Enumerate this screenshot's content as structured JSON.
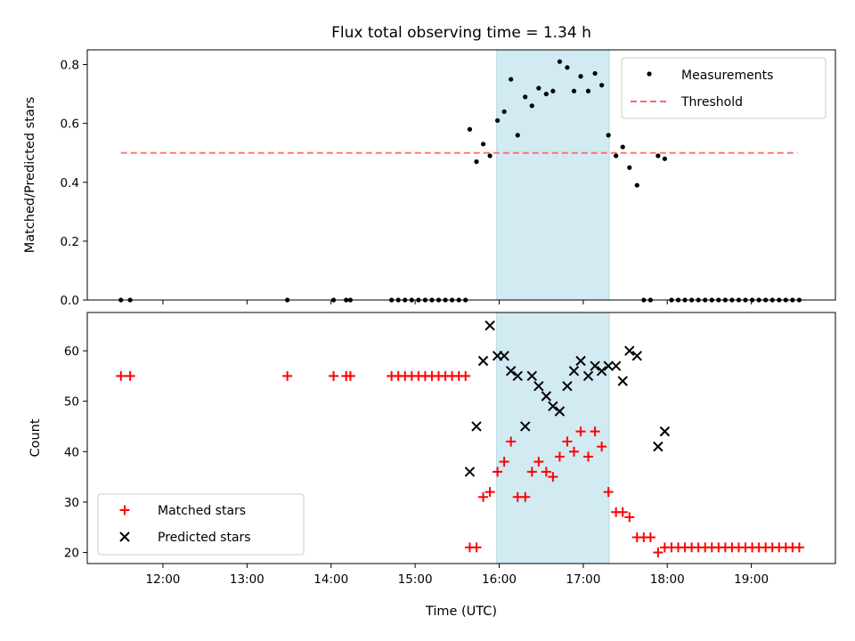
{
  "chart_data": [
    {
      "type": "scatter",
      "title": "Flux total observing time = 1.34 h",
      "ylabel": "Matched/Predicted stars",
      "xlabel": "",
      "xlim": [
        11.1,
        20.0
      ],
      "ylim": [
        0.0,
        0.85
      ],
      "yticks": [
        0.0,
        0.2,
        0.4,
        0.6,
        0.8
      ],
      "ytick_labels": [
        "0.0",
        "0.2",
        "0.4",
        "0.6",
        "0.8"
      ],
      "shaded_span": {
        "x_start": 15.97,
        "x_end": 17.31,
        "color": "#add8e6"
      },
      "threshold": {
        "name": "Threshold",
        "y": 0.5,
        "x_start": 11.5,
        "x_end": 19.55,
        "color": "#ff6666",
        "style": "dashed"
      },
      "series": [
        {
          "name": "Measurements",
          "color": "#000000",
          "marker": "dot",
          "x": [
            11.5,
            11.61,
            13.48,
            14.03,
            14.18,
            14.23,
            14.72,
            14.8,
            14.88,
            14.96,
            15.04,
            15.12,
            15.2,
            15.28,
            15.36,
            15.44,
            15.52,
            15.6,
            15.65,
            15.73,
            15.81,
            15.89,
            15.98,
            16.06,
            16.14,
            16.22,
            16.31,
            16.39,
            16.47,
            16.56,
            16.64,
            16.72,
            16.81,
            16.89,
            16.97,
            17.06,
            17.14,
            17.22,
            17.3,
            17.39,
            17.47,
            17.55,
            17.64,
            17.72,
            17.8,
            17.89,
            17.97,
            18.05,
            18.13,
            18.21,
            18.29,
            18.37,
            18.45,
            18.53,
            18.61,
            18.69,
            18.77,
            18.85,
            18.93,
            19.01,
            19.09,
            19.17,
            19.25,
            19.33,
            19.41,
            19.49,
            19.57
          ],
          "y": [
            0.0,
            0.0,
            0.0,
            0.0,
            0.0,
            0.0,
            0.0,
            0.0,
            0.0,
            0.0,
            0.0,
            0.0,
            0.0,
            0.0,
            0.0,
            0.0,
            0.0,
            0.0,
            0.58,
            0.47,
            0.53,
            0.49,
            0.61,
            0.64,
            0.75,
            0.56,
            0.69,
            0.66,
            0.72,
            0.7,
            0.71,
            0.81,
            0.79,
            0.71,
            0.76,
            0.71,
            0.77,
            0.73,
            0.56,
            0.49,
            0.52,
            0.45,
            0.39,
            0.0,
            0.0,
            0.49,
            0.48,
            0.0,
            0.0,
            0.0,
            0.0,
            0.0,
            0.0,
            0.0,
            0.0,
            0.0,
            0.0,
            0.0,
            0.0,
            0.0,
            0.0,
            0.0,
            0.0,
            0.0,
            0.0,
            0.0,
            0.0
          ]
        }
      ],
      "legend": {
        "placement": "top-right",
        "entries": [
          "Measurements",
          "Threshold"
        ]
      }
    },
    {
      "type": "scatter",
      "title": "",
      "ylabel": "Count",
      "xlabel": "Time (UTC)",
      "xlim": [
        11.1,
        20.0
      ],
      "ylim": [
        17.8,
        67.6
      ],
      "xticks": [
        12,
        13,
        14,
        15,
        16,
        17,
        18,
        19
      ],
      "xtick_labels": [
        "12:00",
        "13:00",
        "14:00",
        "15:00",
        "16:00",
        "17:00",
        "18:00",
        "19:00"
      ],
      "yticks": [
        20,
        30,
        40,
        50,
        60
      ],
      "ytick_labels": [
        "20",
        "30",
        "40",
        "50",
        "60"
      ],
      "shaded_span": {
        "x_start": 15.97,
        "x_end": 17.31,
        "color": "#add8e6"
      },
      "series": [
        {
          "name": "Matched stars",
          "color": "#ff0000",
          "marker": "plus",
          "x": [
            11.5,
            11.61,
            13.48,
            14.03,
            14.18,
            14.23,
            14.72,
            14.8,
            14.88,
            14.96,
            15.04,
            15.12,
            15.2,
            15.28,
            15.36,
            15.44,
            15.52,
            15.6,
            15.65,
            15.73,
            15.81,
            15.89,
            15.98,
            16.06,
            16.14,
            16.22,
            16.31,
            16.39,
            16.47,
            16.56,
            16.64,
            16.72,
            16.81,
            16.89,
            16.97,
            17.06,
            17.14,
            17.22,
            17.3,
            17.39,
            17.47,
            17.55,
            17.64,
            17.72,
            17.8,
            17.89,
            17.97,
            18.05,
            18.13,
            18.21,
            18.29,
            18.37,
            18.45,
            18.53,
            18.61,
            18.69,
            18.77,
            18.85,
            18.93,
            19.01,
            19.09,
            19.17,
            19.25,
            19.33,
            19.41,
            19.49,
            19.57
          ],
          "y": [
            55,
            55,
            55,
            55,
            55,
            55,
            55,
            55,
            55,
            55,
            55,
            55,
            55,
            55,
            55,
            55,
            55,
            55,
            21,
            21,
            31,
            32,
            36,
            38,
            42,
            31,
            31,
            36,
            38,
            36,
            35,
            39,
            42,
            40,
            44,
            39,
            44,
            41,
            32,
            28,
            28,
            27,
            23,
            23,
            23,
            20,
            21,
            21,
            21,
            21,
            21,
            21,
            21,
            21,
            21,
            21,
            21,
            21,
            21,
            21,
            21,
            21,
            21,
            21,
            21,
            21,
            21
          ]
        },
        {
          "name": "Predicted stars",
          "color": "#000000",
          "marker": "x",
          "x": [
            15.65,
            15.73,
            15.81,
            15.89,
            15.98,
            16.06,
            16.14,
            16.22,
            16.31,
            16.39,
            16.47,
            16.56,
            16.64,
            16.72,
            16.81,
            16.89,
            16.97,
            17.06,
            17.14,
            17.22,
            17.3,
            17.39,
            17.47,
            17.55,
            17.64,
            17.89,
            17.97
          ],
          "y": [
            36,
            45,
            58,
            65,
            59,
            59,
            56,
            55,
            45,
            55,
            53,
            51,
            49,
            48,
            53,
            56,
            58,
            55,
            57,
            56,
            57,
            57,
            54,
            60,
            59,
            41,
            44
          ]
        }
      ],
      "legend": {
        "placement": "bottom-left",
        "entries": [
          "Matched stars",
          "Predicted stars"
        ]
      }
    }
  ]
}
